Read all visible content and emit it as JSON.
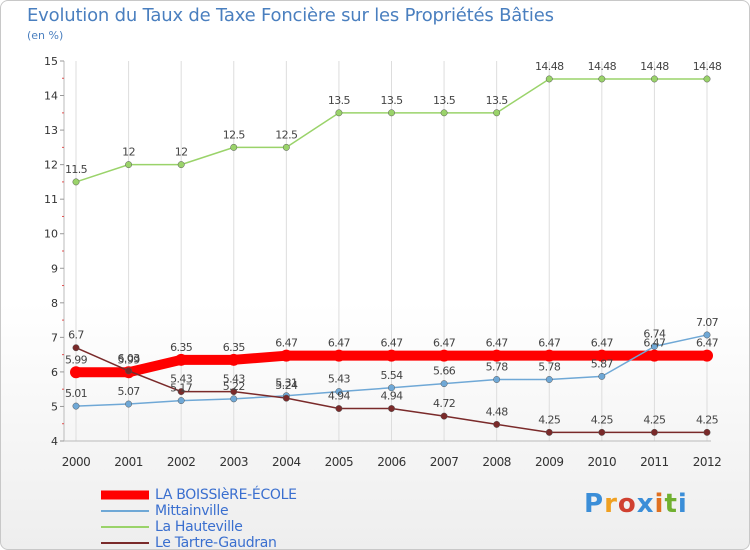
{
  "title": "Evolution du Taux de Taxe Foncière sur les Propriétés Bâties",
  "subtitle": "(en %)",
  "logo": "Proxiti",
  "colors": {
    "la_boissiere": "#ff0000",
    "mittainville": "#6fa8d6",
    "la_hauteville": "#9ad36a",
    "le_tartre_gaudran": "#7a2a2a",
    "grid": "#dddddd",
    "axis_text": "#333333"
  },
  "chart_data": {
    "type": "line",
    "x": [
      "2000",
      "2001",
      "2002",
      "2003",
      "2004",
      "2005",
      "2006",
      "2007",
      "2008",
      "2009",
      "2010",
      "2011",
      "2012"
    ],
    "ylim": [
      4,
      15
    ],
    "y_ticks": [
      "4",
      "5",
      "6",
      "7",
      "8",
      "9",
      "10",
      "11",
      "12",
      "13",
      "14",
      "15"
    ],
    "grid": true,
    "legend_position": "bottom-left",
    "series": [
      {
        "name": "LA BOISSIèRE-ÉCOLE",
        "color": "#ff0000",
        "values": [
          5.99,
          5.99,
          6.35,
          6.35,
          6.47,
          6.47,
          6.47,
          6.47,
          6.47,
          6.47,
          6.47,
          6.47,
          6.47
        ],
        "labels": [
          "5.99",
          "5.99",
          "6.35",
          "6.35",
          "6.47",
          "6.47",
          "6.47",
          "6.47",
          "6.47",
          "6.47",
          "6.47",
          "6.47",
          "6.47"
        ]
      },
      {
        "name": "Mittainville",
        "color": "#6fa8d6",
        "values": [
          5.01,
          5.07,
          5.17,
          5.22,
          5.31,
          5.43,
          5.54,
          5.66,
          5.78,
          5.78,
          5.87,
          6.74,
          7.07
        ],
        "labels": [
          "5.01",
          "5.07",
          "5.17",
          "5.22",
          "5.31",
          "5.43",
          "5.54",
          "5.66",
          "5.78",
          "5.78",
          "5.87",
          "6.74",
          "7.07"
        ]
      },
      {
        "name": "La Hauteville",
        "color": "#9ad36a",
        "values": [
          11.5,
          12,
          12,
          12.5,
          12.5,
          13.5,
          13.5,
          13.5,
          13.5,
          14.48,
          14.48,
          14.48,
          14.48
        ],
        "labels": [
          "11.5",
          "12",
          "12",
          "12.5",
          "12.5",
          "13.5",
          "13.5",
          "13.5",
          "13.5",
          "14.48",
          "14.48",
          "14.48",
          "14.48"
        ]
      },
      {
        "name": "Le Tartre-Gaudran",
        "color": "#7a2a2a",
        "values": [
          6.7,
          6.03,
          5.43,
          5.43,
          5.24,
          4.94,
          4.94,
          4.72,
          4.48,
          4.25,
          4.25,
          4.25,
          4.25
        ],
        "labels": [
          "6.7",
          "6.03",
          "5.43",
          "5.43",
          "5.24",
          "4.94",
          "4.94",
          "4.72",
          "4.48",
          "4.25",
          "4.25",
          "4.25",
          "4.25"
        ]
      }
    ]
  }
}
